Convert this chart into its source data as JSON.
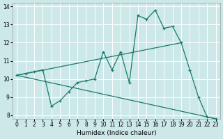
{
  "xlabel": "Humidex (Indice chaleur)",
  "xlim": [
    -0.5,
    23.5
  ],
  "ylim": [
    7.8,
    14.2
  ],
  "yticks": [
    8,
    9,
    10,
    11,
    12,
    13,
    14
  ],
  "xticks": [
    0,
    1,
    2,
    3,
    4,
    5,
    6,
    7,
    8,
    9,
    10,
    11,
    12,
    13,
    14,
    15,
    16,
    17,
    18,
    19,
    20,
    21,
    22,
    23
  ],
  "bg_color": "#cce8e8",
  "grid_color": "#ffffff",
  "line_color": "#1a7a6a",
  "zigzag": {
    "x": [
      0,
      1,
      2,
      3,
      4,
      5,
      6,
      7,
      8,
      9,
      10,
      11,
      12,
      13,
      14,
      15,
      16,
      17,
      18,
      19,
      20,
      21,
      22,
      23
    ],
    "y": [
      10.2,
      10.3,
      10.4,
      10.5,
      8.5,
      8.8,
      9.3,
      9.8,
      9.9,
      10.0,
      11.5,
      10.5,
      11.5,
      9.8,
      13.5,
      13.3,
      13.8,
      12.8,
      12.9,
      12.0,
      10.5,
      9.0,
      7.9,
      7.8
    ]
  },
  "upper_line": {
    "x": [
      0,
      19
    ],
    "y": [
      10.2,
      12.0
    ]
  },
  "lower_line": {
    "x": [
      0,
      23
    ],
    "y": [
      10.2,
      7.8
    ]
  },
  "connector_line": {
    "x": [
      3,
      4
    ],
    "y": [
      10.5,
      10.5
    ]
  }
}
